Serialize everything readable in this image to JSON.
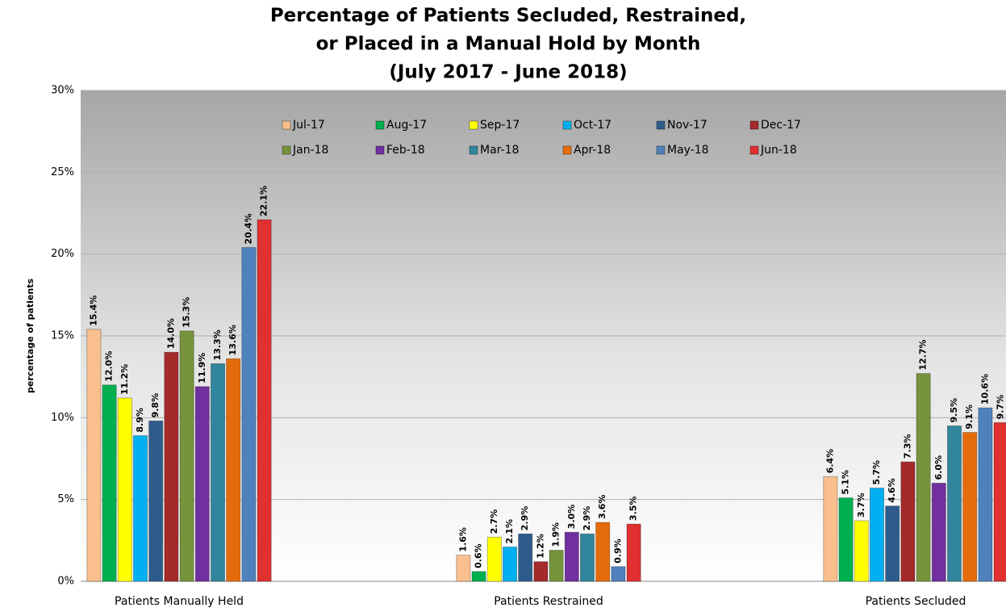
{
  "chart_data": {
    "type": "bar",
    "title": [
      "Percentage of Patients Secluded, Restrained,",
      "or Placed in a Manual Hold by Month",
      "(July 2017 - June 2018)"
    ],
    "y_label": "percentage of patients",
    "categories": [
      "Patients Manually Held",
      "Patients Restrained",
      "Patients Secluded"
    ],
    "series": [
      {
        "name": "Jul-17",
        "color": "#f9c08e",
        "values": [
          15.4,
          1.6,
          6.4
        ],
        "value_labels": [
          "15.4%",
          "1.6%",
          "6.4%"
        ]
      },
      {
        "name": "Aug-17",
        "color": "#00b050",
        "values": [
          12.0,
          0.6,
          5.1
        ],
        "value_labels": [
          "12.0%",
          "0.6%",
          "5.1%"
        ]
      },
      {
        "name": "Sep-17",
        "color": "#ffff00",
        "values": [
          11.2,
          2.7,
          3.7
        ],
        "value_labels": [
          "11.2%",
          "2.7%",
          "3.7%"
        ]
      },
      {
        "name": "Oct-17",
        "color": "#00b0f0",
        "values": [
          8.9,
          2.1,
          5.7
        ],
        "value_labels": [
          "8.9%",
          "2.1%",
          "5.7%"
        ]
      },
      {
        "name": "Nov-17",
        "color": "#2e5c8a",
        "values": [
          9.8,
          2.9,
          4.6
        ],
        "value_labels": [
          "9.8%",
          "2.9%",
          "4.6%"
        ]
      },
      {
        "name": "Dec-17",
        "color": "#a52a2a",
        "values": [
          14.0,
          1.2,
          7.3
        ],
        "value_labels": [
          "14.0%",
          "1.2%",
          "7.3%"
        ]
      },
      {
        "name": "Jan-18",
        "color": "#77933c",
        "values": [
          15.3,
          1.9,
          12.7
        ],
        "value_labels": [
          "15.3%",
          "1.9%",
          "12.7%"
        ]
      },
      {
        "name": "Feb-18",
        "color": "#7030a0",
        "values": [
          11.9,
          3.0,
          6.0
        ],
        "value_labels": [
          "11.9%",
          "3.0%",
          "6.0%"
        ]
      },
      {
        "name": "Mar-18",
        "color": "#31859c",
        "values": [
          13.3,
          2.9,
          9.5
        ],
        "value_labels": [
          "13.3%",
          "2.9%",
          "9.5%"
        ]
      },
      {
        "name": "Apr-18",
        "color": "#e46c0a",
        "values": [
          13.6,
          3.6,
          9.1
        ],
        "value_labels": [
          "13.6%",
          "3.6%",
          "9.1%"
        ]
      },
      {
        "name": "May-18",
        "color": "#4f81bd",
        "values": [
          20.4,
          0.9,
          10.6
        ],
        "value_labels": [
          "20.4%",
          "0.9%",
          "10.6%"
        ]
      },
      {
        "name": "Jun-18",
        "color": "#e03030",
        "values": [
          22.1,
          3.5,
          9.7
        ],
        "value_labels": [
          "22.1%",
          "3.5%",
          "9.7%"
        ]
      }
    ],
    "ylim": [
      0,
      30
    ],
    "yticks": [
      {
        "value": 0,
        "label": "0%"
      },
      {
        "value": 5,
        "label": "5%"
      },
      {
        "value": 10,
        "label": "10%"
      },
      {
        "value": 15,
        "label": "15%"
      },
      {
        "value": 20,
        "label": "20%"
      },
      {
        "value": 25,
        "label": "25%"
      },
      {
        "value": 30,
        "label": "30%"
      }
    ],
    "grid": true
  }
}
